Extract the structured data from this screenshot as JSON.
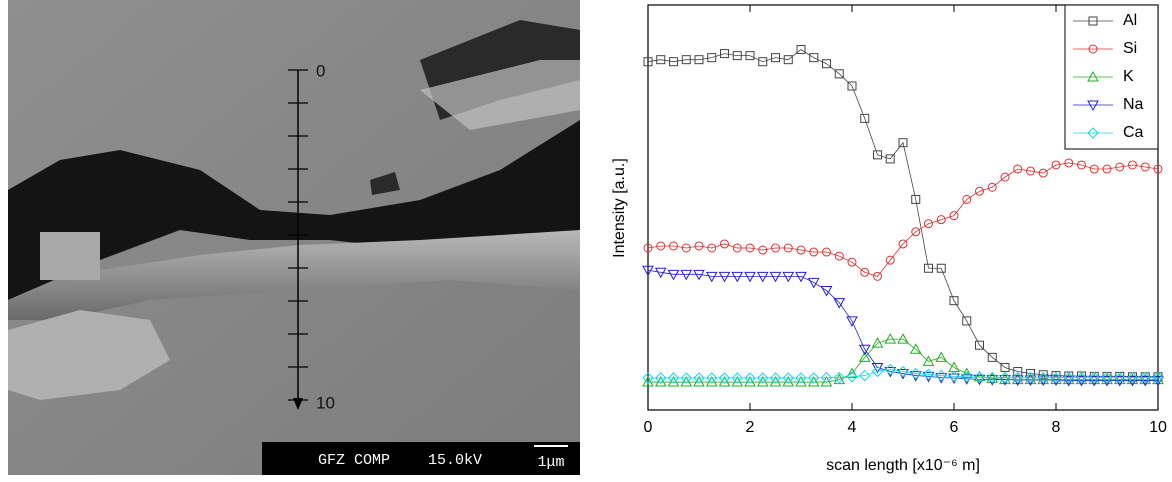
{
  "image": {
    "scale_start": "0",
    "scale_end": "10",
    "info": [
      "GFZ COMP",
      "15.0kV"
    ],
    "scale_bar": "1μm"
  },
  "chart_data": {
    "type": "line",
    "x": [
      0,
      0.25,
      0.5,
      0.75,
      1,
      1.25,
      1.5,
      1.75,
      2,
      2.25,
      2.5,
      2.75,
      3,
      3.25,
      3.5,
      3.75,
      4,
      4.25,
      4.5,
      4.75,
      5,
      5.25,
      5.5,
      5.75,
      6,
      6.25,
      6.5,
      6.75,
      7,
      7.25,
      7.5,
      7.75,
      8,
      8.25,
      8.5,
      8.75,
      9,
      9.25,
      9.5,
      9.75,
      10
    ],
    "series": [
      {
        "name": "Al",
        "color": "#444444",
        "marker": "square",
        "values": [
          86,
          86.5,
          86,
          86.5,
          86.5,
          87,
          88,
          87.5,
          87.5,
          86,
          87,
          86.5,
          89,
          87,
          85.5,
          83,
          80,
          72,
          63,
          62,
          66,
          52,
          35,
          35,
          27,
          22,
          16,
          13,
          10.5,
          9.5,
          9,
          8.7,
          8.5,
          8.4,
          8.4,
          8.3,
          8.3,
          8.3,
          8.2,
          8.2,
          8.2
        ]
      },
      {
        "name": "Si",
        "color": "#e03030",
        "marker": "circle",
        "values": [
          40,
          40.5,
          40.5,
          40,
          40.5,
          40,
          41,
          40,
          40,
          39.5,
          40,
          40,
          39.5,
          39,
          39,
          38,
          36.5,
          34,
          33,
          37,
          41,
          44,
          46,
          47,
          48,
          52,
          54,
          55,
          57.5,
          59.5,
          59,
          58.5,
          60.5,
          61,
          60.5,
          59.5,
          59.5,
          60,
          60.5,
          60,
          59.5
        ]
      },
      {
        "name": "K",
        "color": "#20b020",
        "marker": "triangle-up",
        "values": [
          6.9,
          6.9,
          6.9,
          6.9,
          6.9,
          6.9,
          6.9,
          6.9,
          6.9,
          6.9,
          6.9,
          6.9,
          6.9,
          6.9,
          6.9,
          7.5,
          9,
          13,
          16.5,
          17.5,
          17.5,
          15,
          12,
          13,
          10.5,
          9,
          8.2,
          7.8,
          7.5,
          7.5,
          7.5,
          7.5,
          7.5,
          7.5,
          7.5,
          7.5,
          7.5,
          7.5,
          7.5,
          7.5,
          7.5
        ]
      },
      {
        "name": "Na",
        "color": "#2020d0",
        "marker": "triangle-down",
        "values": [
          34.5,
          34,
          33.5,
          33.5,
          33.5,
          33,
          33,
          33,
          33,
          33,
          33,
          33,
          33,
          31.5,
          29.5,
          26.5,
          22,
          15,
          10.5,
          9.5,
          9,
          8.5,
          8.3,
          8,
          7.9,
          7.7,
          7.6,
          7.5,
          7.5,
          7.4,
          7.4,
          7.4,
          7.4,
          7.3,
          7.3,
          7.3,
          7.3,
          7.3,
          7.3,
          7.3,
          7.3
        ]
      },
      {
        "name": "Ca",
        "color": "#10d8e8",
        "marker": "diamond",
        "values": [
          7.9,
          7.9,
          7.9,
          7.9,
          7.9,
          7.9,
          7.9,
          7.9,
          7.9,
          7.9,
          7.9,
          7.9,
          7.9,
          7.9,
          8,
          8,
          8.2,
          8.5,
          9.5,
          10,
          9.5,
          9,
          8.8,
          8.5,
          8.3,
          8.2,
          8.1,
          8,
          8,
          8,
          8,
          8,
          8,
          8,
          8,
          8,
          8,
          8,
          8,
          8,
          8
        ]
      }
    ],
    "xlim": [
      0,
      10
    ],
    "xticks": [
      0,
      2,
      4,
      6,
      8,
      10
    ],
    "ylim": [
      0,
      100
    ],
    "xlabel": "scan length [x10⁻⁶ m]",
    "ylabel": "Intensity [a.u.]",
    "legend": "upper right"
  }
}
